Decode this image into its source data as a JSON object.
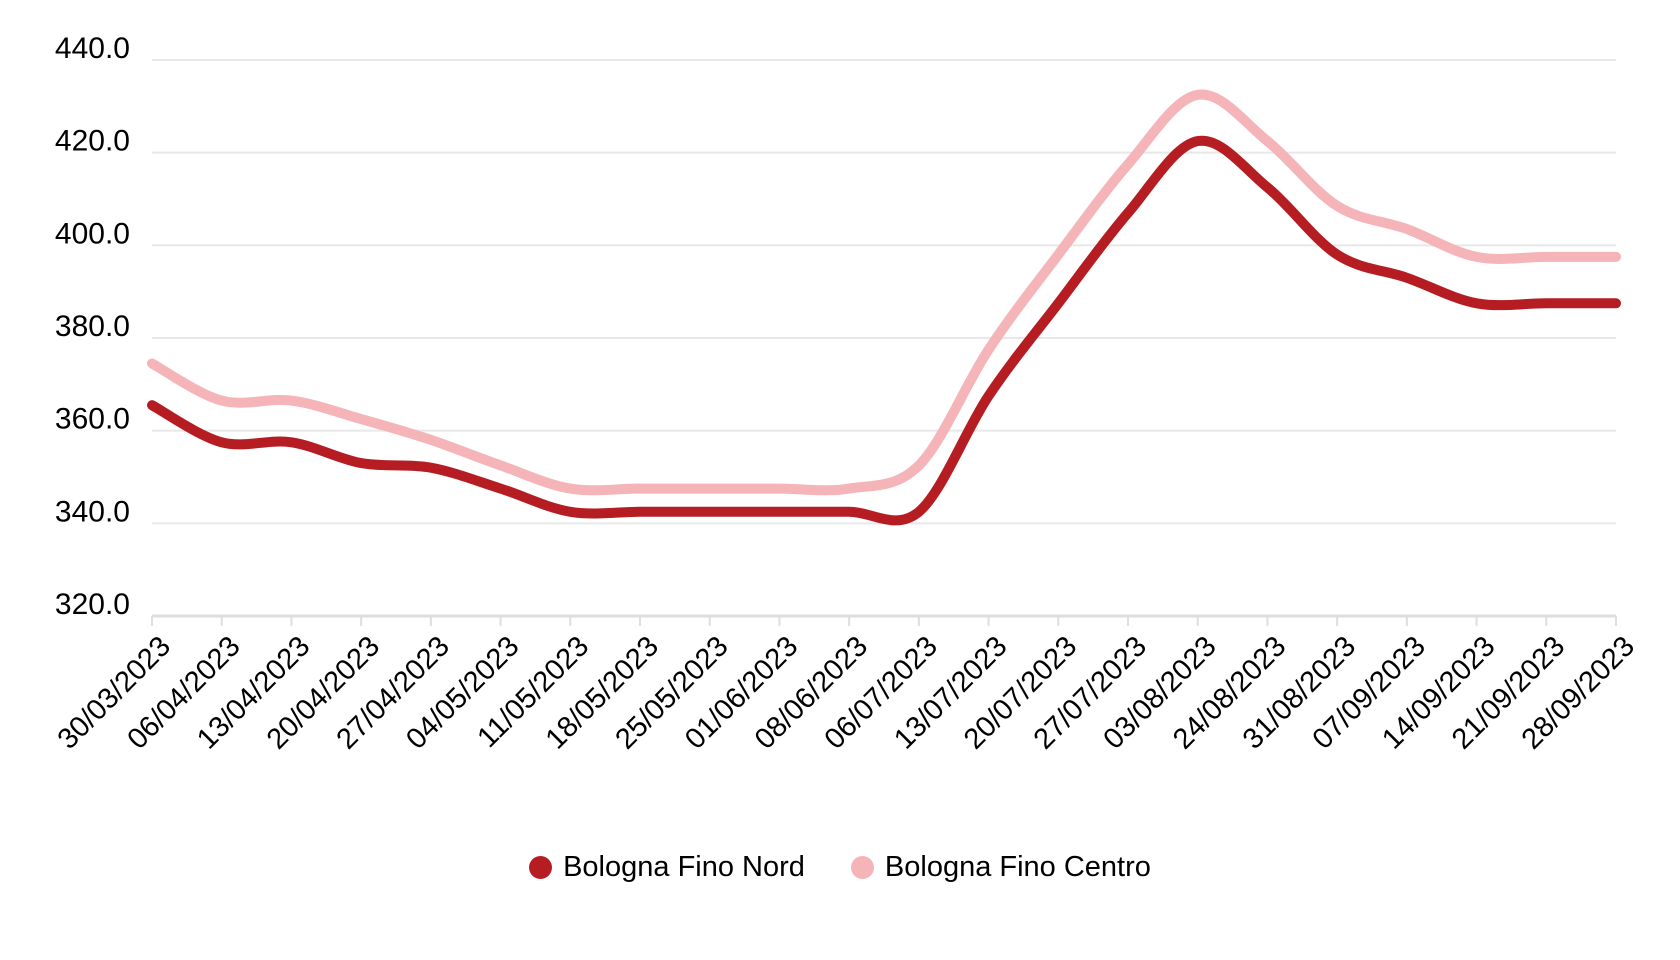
{
  "chart_data": {
    "type": "line",
    "title": "",
    "xlabel": "",
    "ylabel": "",
    "categories": [
      "30/03/2023",
      "06/04/2023",
      "13/04/2023",
      "20/04/2023",
      "27/04/2023",
      "04/05/2023",
      "11/05/2023",
      "18/05/2023",
      "25/05/2023",
      "01/06/2023",
      "08/06/2023",
      "06/07/2023",
      "13/07/2023",
      "20/07/2023",
      "27/07/2023",
      "03/08/2023",
      "24/08/2023",
      "31/08/2023",
      "07/09/2023",
      "14/09/2023",
      "21/09/2023",
      "28/09/2023"
    ],
    "series": [
      {
        "name": "Bologna Fino Nord",
        "color": "#B51D22",
        "values": [
          365.5,
          357.5,
          357.5,
          353.0,
          352.0,
          347.5,
          342.5,
          342.5,
          342.5,
          342.5,
          342.5,
          342.5,
          367.5,
          387.5,
          407.0,
          422.5,
          412.5,
          398.0,
          393.0,
          387.5,
          387.5,
          387.5
        ]
      },
      {
        "name": "Bologna Fino Centro",
        "color": "#F4B4B8",
        "values": [
          374.5,
          366.5,
          366.5,
          362.5,
          358.0,
          352.5,
          347.5,
          347.5,
          347.5,
          347.5,
          347.5,
          352.5,
          377.5,
          398.0,
          417.5,
          432.5,
          422.5,
          408.5,
          403.5,
          397.5,
          397.5,
          397.5
        ]
      }
    ],
    "ylim": [
      320,
      440
    ],
    "y_ticks": [
      320,
      340,
      360,
      380,
      400,
      420,
      440
    ],
    "y_tick_labels": [
      "320.0",
      "340.0",
      "360.0",
      "380.0",
      "400.0",
      "420.0",
      "440.0"
    ],
    "grid": true,
    "curve": "smooth",
    "line_width": 10,
    "legend_position": "bottom",
    "colors": {
      "background": "#ffffff",
      "gridline": "#E8E8E8",
      "axis_line": "#DEDEDE",
      "tick": "#DEDEDE",
      "label_text": "#000000",
      "legend_text": "#000000"
    }
  }
}
